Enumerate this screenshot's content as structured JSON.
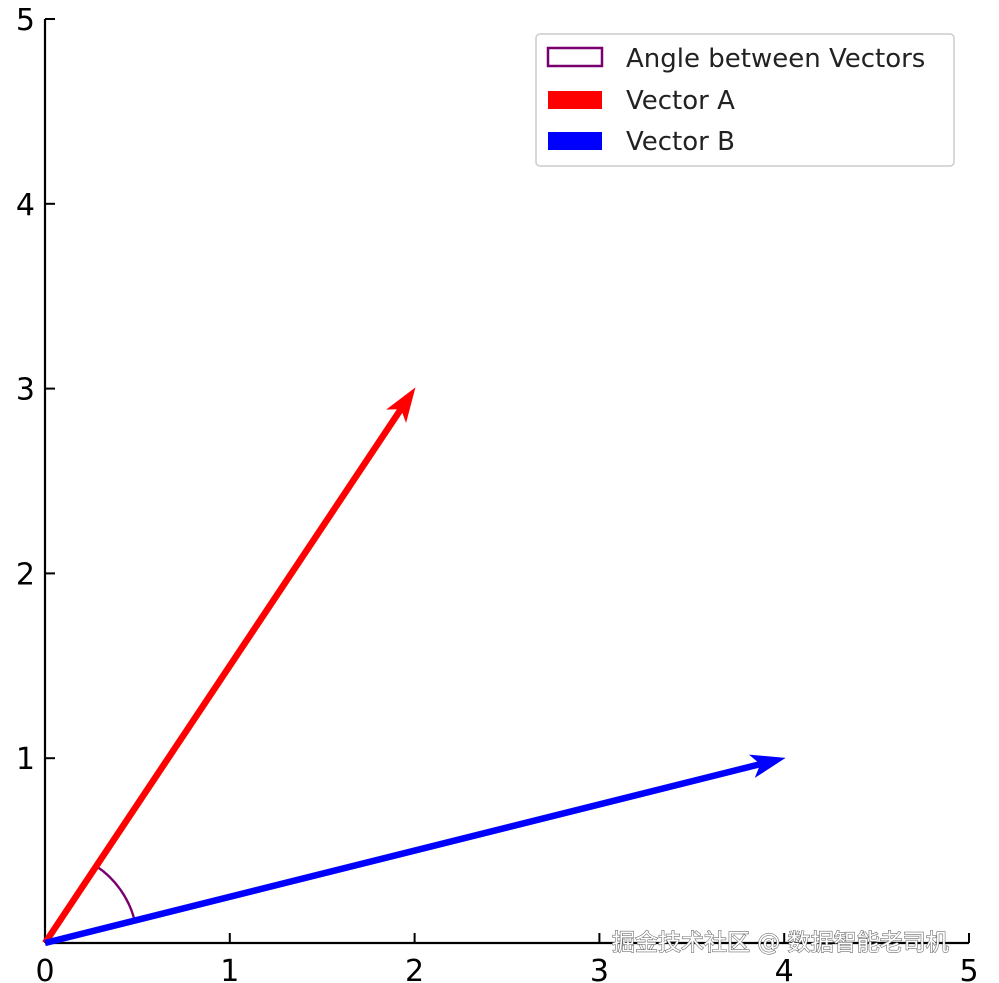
{
  "chart_data": {
    "type": "vector",
    "xlim": [
      0,
      5
    ],
    "ylim": [
      0,
      5
    ],
    "xticks": [
      "0",
      "1",
      "2",
      "3",
      "4",
      "5"
    ],
    "yticks": [
      "1",
      "2",
      "3",
      "4",
      "5"
    ],
    "grid": false,
    "legend_position": "top-right",
    "series": [
      {
        "name": "Vector A",
        "x": [
          0,
          2
        ],
        "y": [
          0,
          3
        ],
        "color": "#ff0000"
      },
      {
        "name": "Vector B",
        "x": [
          0,
          4
        ],
        "y": [
          0,
          1
        ],
        "color": "#0000ff"
      }
    ],
    "angle_arc": {
      "name": "Angle between Vectors",
      "color": "#7a0070",
      "radius": 0.5
    }
  },
  "watermark": "掘金技术社区 @ 数据智能老司机"
}
